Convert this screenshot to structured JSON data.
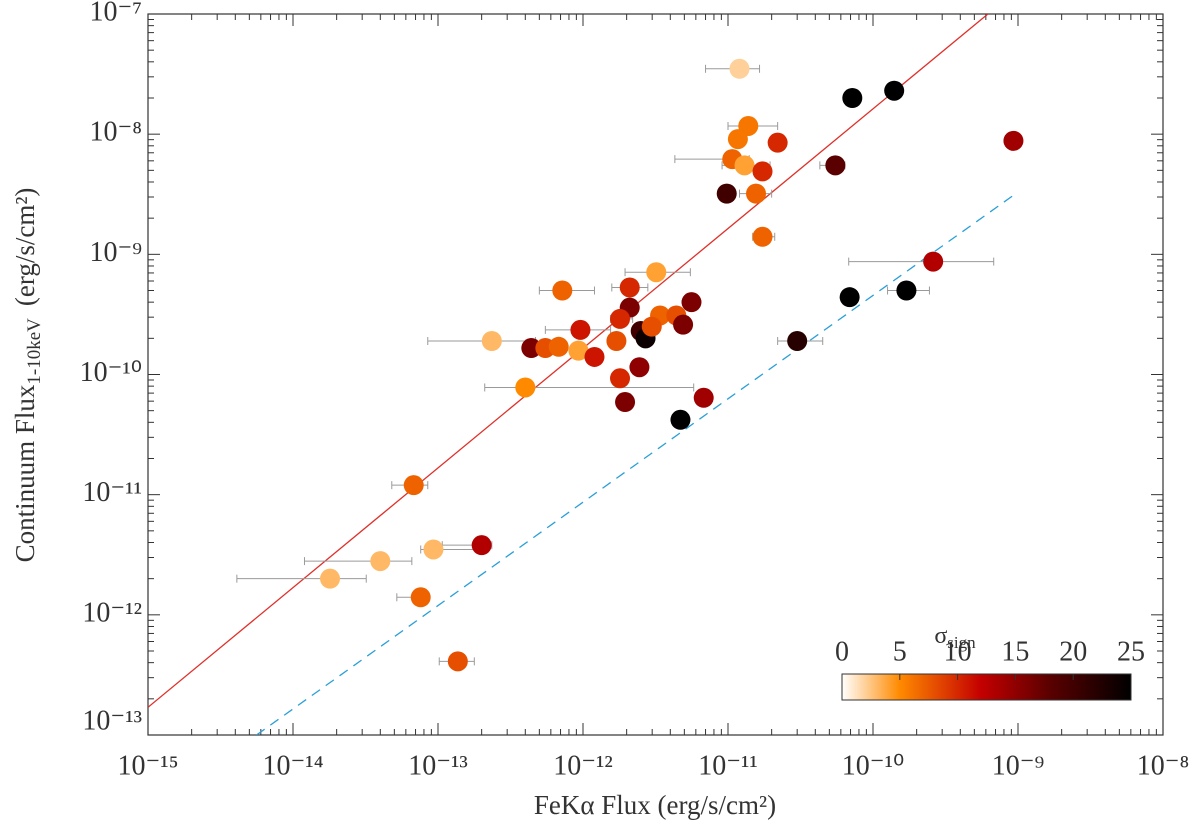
{
  "chart_data": {
    "type": "scatter",
    "xlabel": "FeKα Flux (erg/s/cm²)",
    "ylabel": "Continuum Flux",
    "ylabel_sub": "1-10keV",
    "ylabel_unit": "(erg/s/cm²)",
    "xscale": "log",
    "yscale": "log",
    "xlim": [
      1e-15,
      1e-08
    ],
    "ylim": [
      1e-13,
      1e-07
    ],
    "xticks": [
      {
        "value": 1e-15,
        "label": "10⁻¹⁵"
      },
      {
        "value": 1e-14,
        "label": "10⁻¹⁴"
      },
      {
        "value": 1e-13,
        "label": "10⁻¹³"
      },
      {
        "value": 1e-12,
        "label": "10⁻¹²"
      },
      {
        "value": 1e-11,
        "label": "10⁻¹¹"
      },
      {
        "value": 1e-10,
        "label": "10⁻¹⁰"
      },
      {
        "value": 1e-09,
        "label": "10⁻⁹"
      },
      {
        "value": 1e-08,
        "label": "10⁻⁸"
      }
    ],
    "yticks": [
      {
        "value": 1e-13,
        "label": "10⁻¹³"
      },
      {
        "value": 1e-12,
        "label": "10⁻¹²"
      },
      {
        "value": 1e-11,
        "label": "10⁻¹¹"
      },
      {
        "value": 1e-10,
        "label": "10⁻¹⁰"
      },
      {
        "value": 1e-09,
        "label": "10⁻⁹"
      },
      {
        "value": 1e-08,
        "label": "10⁻⁸"
      },
      {
        "value": 1e-07,
        "label": "10⁻⁷"
      }
    ],
    "errorbar_color": "#9a9a9a",
    "x": [
      1.2e-11,
      7.2e-11,
      1.4e-10,
      9.3e-10,
      1.38e-11,
      1.17e-11,
      2.2e-11,
      1.07e-11,
      1.3e-11,
      1.73e-11,
      5.5e-11,
      9.8e-12,
      1.56e-11,
      1.73e-11,
      2.6e-10,
      3.2e-12,
      7.2e-13,
      2.1e-12,
      1.7e-10,
      6.9e-11,
      5.6e-12,
      2.1e-12,
      1.8e-12,
      3.4e-12,
      4.4e-12,
      4.9e-12,
      2.5e-12,
      2.7e-12,
      2.98e-12,
      9.6e-13,
      2.35e-13,
      3e-11,
      4.4e-13,
      5.5e-13,
      6.8e-13,
      9.3e-13,
      1.7e-12,
      1.2e-12,
      2.45e-12,
      1.8e-12,
      4e-13,
      6.8e-12,
      1.95e-12,
      4.7e-12,
      6.8e-14,
      2e-13,
      9.3e-14,
      4e-14,
      1.8e-14,
      7.6e-14,
      1.37e-13
    ],
    "y": [
      3.5e-08,
      2e-08,
      2.3e-08,
      8.8e-09,
      1.17e-08,
      9.1e-09,
      8.5e-09,
      6.2e-09,
      5.5e-09,
      4.9e-09,
      5.5e-09,
      3.2e-09,
      3.2e-09,
      1.4e-09,
      8.7e-10,
      7.1e-10,
      5e-10,
      5.3e-10,
      5e-10,
      4.4e-10,
      4e-10,
      3.6e-10,
      2.9e-10,
      3.1e-10,
      3.1e-10,
      2.6e-10,
      2.3e-10,
      2e-10,
      2.5e-10,
      2.35e-10,
      1.9e-10,
      1.9e-10,
      1.66e-10,
      1.66e-10,
      1.7e-10,
      1.58e-10,
      1.9e-10,
      1.4e-10,
      1.15e-10,
      9.3e-11,
      7.8e-11,
      6.4e-11,
      5.9e-11,
      4.2e-11,
      1.2e-11,
      3.8e-12,
      3.5e-12,
      2.8e-12,
      2e-12,
      1.4e-12,
      4.1e-13
    ],
    "sigma": [
      2,
      25,
      25,
      14,
      6,
      6,
      10,
      7,
      4,
      10,
      18,
      20,
      7,
      7,
      13,
      4,
      7,
      10,
      25,
      25,
      16,
      16,
      10,
      7,
      8,
      16,
      20,
      24,
      8,
      11,
      3,
      22,
      16,
      8,
      7,
      4,
      8,
      11,
      15,
      10,
      5,
      14,
      16,
      25,
      7,
      13,
      3,
      3,
      3,
      7,
      8
    ],
    "x_lo": [
      7e-12,
      null,
      null,
      null,
      1e-11,
      null,
      null,
      4.3e-12,
      9.1e-12,
      null,
      4.3e-11,
      null,
      1.2e-11,
      1.48e-11,
      6.8e-11,
      1.95e-12,
      5e-13,
      1.58e-12,
      1.26e-10,
      null,
      null,
      null,
      1.55e-12,
      null,
      null,
      null,
      null,
      null,
      null,
      5.5e-13,
      8.5e-14,
      2.2e-11,
      null,
      null,
      null,
      null,
      null,
      null,
      null,
      null,
      2.1e-13,
      null,
      null,
      null,
      4.8e-14,
      1.07e-13,
      7.6e-14,
      1.2e-14,
      4.1e-15,
      5.2e-14,
      1.02e-13
    ],
    "x_hi": [
      1.65e-11,
      null,
      null,
      null,
      2.2e-11,
      null,
      null,
      1.4e-11,
      1.95e-11,
      null,
      6.4e-11,
      null,
      2e-11,
      2.1e-11,
      6.8e-10,
      5.5e-12,
      1.2e-12,
      2.8e-12,
      2.45e-10,
      null,
      null,
      null,
      2.2e-12,
      null,
      null,
      null,
      null,
      null,
      null,
      1.55e-12,
      4.7e-13,
      4.5e-11,
      null,
      null,
      null,
      null,
      null,
      null,
      null,
      null,
      5.8e-12,
      null,
      null,
      null,
      8.5e-14,
      2.35e-13,
      2e-13,
      6.6e-14,
      3.2e-14,
      8.7e-14,
      1.78e-13
    ],
    "lines": [
      {
        "color": "#e0302a",
        "style": "solid",
        "x": [
          1e-15,
          6.2e-10
        ],
        "y": [
          1.7e-13,
          1e-07
        ]
      },
      {
        "color": "#2a9fd8",
        "style": "dashed",
        "x": [
          5.6e-15,
          9.3e-10
        ],
        "y": [
          1e-13,
          3.1e-09
        ]
      }
    ],
    "colorbar": {
      "label": "σ",
      "label_sub": "sign",
      "lim": [
        0,
        25
      ],
      "ticks": [
        0,
        5,
        10,
        15,
        20,
        25
      ],
      "stops": [
        [
          0,
          "#ffffff"
        ],
        [
          5,
          "#ff8a00"
        ],
        [
          12,
          "#c40000"
        ],
        [
          18,
          "#5a0000"
        ],
        [
          25,
          "#000000"
        ]
      ]
    }
  }
}
